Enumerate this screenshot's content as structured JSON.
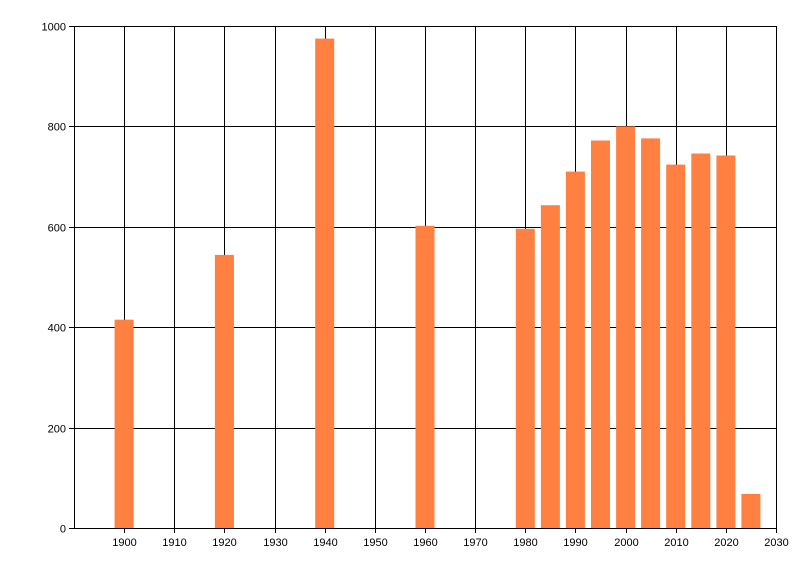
{
  "chart_data": {
    "type": "bar",
    "title": "",
    "xlabel": "",
    "ylabel": "",
    "xlim": [
      1890,
      2030
    ],
    "ylim": [
      0,
      1000
    ],
    "x_ticks": [
      1900,
      1910,
      1920,
      1930,
      1940,
      1950,
      1960,
      1970,
      1980,
      1990,
      2000,
      2010,
      2020,
      2030
    ],
    "y_ticks": [
      0,
      200,
      400,
      600,
      800,
      1000
    ],
    "grid": true,
    "legend": "none",
    "bar_color": "#ff8040",
    "points": [
      {
        "x": 1900,
        "y": 415
      },
      {
        "x": 1920,
        "y": 544
      },
      {
        "x": 1940,
        "y": 975
      },
      {
        "x": 1960,
        "y": 602
      },
      {
        "x": 1980,
        "y": 596
      },
      {
        "x": 1985,
        "y": 643
      },
      {
        "x": 1990,
        "y": 710
      },
      {
        "x": 1995,
        "y": 772
      },
      {
        "x": 2000,
        "y": 800
      },
      {
        "x": 2005,
        "y": 776
      },
      {
        "x": 2010,
        "y": 724
      },
      {
        "x": 2015,
        "y": 746
      },
      {
        "x": 2020,
        "y": 742
      },
      {
        "x": 2025,
        "y": 68
      }
    ]
  }
}
